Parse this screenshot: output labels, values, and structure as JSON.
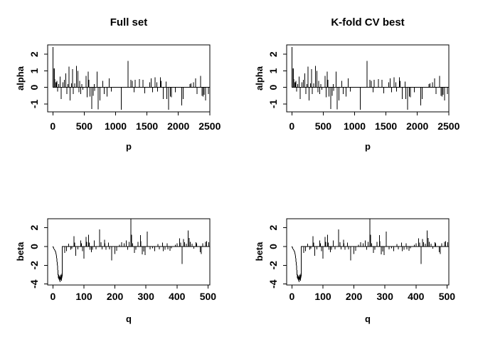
{
  "window": {
    "background": "#ffffff",
    "plot_color": "#000000"
  },
  "chart_data": [
    {
      "type": "line",
      "panel": "full-alpha",
      "layout_row": "top",
      "grid_position": [
        0,
        0
      ],
      "title": "Full set",
      "xlabel": "p",
      "ylabel": "alpha",
      "xlim": [
        -83,
        2502
      ],
      "ylim": [
        -1.48,
        2.57
      ],
      "x_ticks": [
        0,
        500,
        1000,
        1500,
        2000,
        2500
      ],
      "y_ticks": [
        -1,
        0,
        1,
        2
      ],
      "grid": "off",
      "legend": "none",
      "series": "alpha"
    },
    {
      "type": "line",
      "panel": "cv-alpha",
      "layout_row": "top",
      "grid_position": [
        0,
        1
      ],
      "title": "K-fold CV best",
      "xlabel": "p",
      "ylabel": "alpha",
      "xlim": [
        -83,
        2502
      ],
      "ylim": [
        -1.48,
        2.57
      ],
      "x_ticks": [
        0,
        500,
        1000,
        1500,
        2000,
        2500
      ],
      "y_ticks": [
        -1,
        0,
        1,
        2
      ],
      "grid": "off",
      "legend": "none",
      "series": "alpha"
    },
    {
      "type": "line",
      "panel": "full-beta",
      "layout_row": "bottom",
      "grid_position": [
        1,
        0
      ],
      "title": "",
      "xlabel": "q",
      "ylabel": "beta",
      "xlim": [
        -17,
        506
      ],
      "ylim": [
        -4.1,
        2.95
      ],
      "x_ticks": [
        0,
        100,
        200,
        300,
        400,
        500
      ],
      "y_ticks": [
        -4,
        -2,
        0,
        2
      ],
      "grid": "off",
      "legend": "none",
      "series": "beta"
    },
    {
      "type": "line",
      "panel": "cv-beta",
      "layout_row": "bottom",
      "grid_position": [
        1,
        1
      ],
      "title": "",
      "xlabel": "q",
      "ylabel": "beta",
      "xlim": [
        -17,
        506
      ],
      "ylim": [
        -4.1,
        2.95
      ],
      "x_ticks": [
        0,
        100,
        200,
        300,
        400,
        500
      ],
      "y_ticks": [
        -4,
        -2,
        0,
        2
      ],
      "grid": "off",
      "legend": "none",
      "series": "beta"
    }
  ],
  "series": {
    "alpha": {
      "baseline": 0,
      "x_range": [
        0,
        2500
      ],
      "spikes": [
        [
          2,
          2.45
        ],
        [
          10,
          1.15
        ],
        [
          24,
          1.15
        ],
        [
          28,
          0.5
        ],
        [
          45,
          0.3
        ],
        [
          52,
          0.3
        ],
        [
          62,
          0.4
        ],
        [
          77,
          -0.25
        ],
        [
          95,
          0.2
        ],
        [
          115,
          0.65
        ],
        [
          135,
          -0.7
        ],
        [
          158,
          0.3
        ],
        [
          185,
          0.45
        ],
        [
          205,
          0.85
        ],
        [
          223,
          -0.4
        ],
        [
          240,
          0.2
        ],
        [
          258,
          1.25
        ],
        [
          273,
          -0.8
        ],
        [
          295,
          0.25
        ],
        [
          311,
          1.1
        ],
        [
          327,
          -0.4
        ],
        [
          350,
          0.25
        ],
        [
          377,
          1.3
        ],
        [
          398,
          1.0
        ],
        [
          415,
          -0.3
        ],
        [
          428,
          0.4
        ],
        [
          445,
          -0.4
        ],
        [
          460,
          0.2
        ],
        [
          480,
          -0.15
        ],
        [
          527,
          0.7
        ],
        [
          545,
          -0.6
        ],
        [
          563,
          0.95
        ],
        [
          575,
          0.45
        ],
        [
          593,
          -0.55
        ],
        [
          619,
          -1.3
        ],
        [
          640,
          -0.5
        ],
        [
          660,
          0.2
        ],
        [
          668,
          -0.2
        ],
        [
          705,
          0.95
        ],
        [
          720,
          -1.33
        ],
        [
          750,
          -0.8
        ],
        [
          798,
          0.4
        ],
        [
          817,
          -0.4
        ],
        [
          862,
          -0.55
        ],
        [
          899,
          0.55
        ],
        [
          929,
          -0.25
        ],
        [
          1092,
          -1.35
        ],
        [
          1196,
          1.6
        ],
        [
          1242,
          0.45
        ],
        [
          1265,
          0.4
        ],
        [
          1296,
          -0.3
        ],
        [
          1312,
          0.45
        ],
        [
          1381,
          0.5
        ],
        [
          1438,
          0.45
        ],
        [
          1462,
          -0.35
        ],
        [
          1542,
          0.3
        ],
        [
          1565,
          0.55
        ],
        [
          1592,
          -0.3
        ],
        [
          1630,
          0.6
        ],
        [
          1655,
          0.3
        ],
        [
          1668,
          -0.25
        ],
        [
          1712,
          0.6
        ],
        [
          1724,
          0.4
        ],
        [
          1760,
          -0.7
        ],
        [
          1804,
          0.35
        ],
        [
          1815,
          -0.7
        ],
        [
          1845,
          -1.35
        ],
        [
          1870,
          -0.55
        ],
        [
          1890,
          -0.6
        ],
        [
          1952,
          -0.3
        ],
        [
          2055,
          -1.1
        ],
        [
          2075,
          -0.7
        ],
        [
          2185,
          0.2
        ],
        [
          2200,
          0.25
        ],
        [
          2240,
          0.3
        ],
        [
          2278,
          0.55
        ],
        [
          2300,
          -0.4
        ],
        [
          2352,
          0.7
        ],
        [
          2375,
          -0.5
        ],
        [
          2395,
          -0.55
        ],
        [
          2410,
          -0.45
        ],
        [
          2433,
          -0.8
        ],
        [
          2480,
          -0.4
        ]
      ]
    },
    "beta": {
      "baseline": 0,
      "x_range": [
        0,
        505
      ],
      "lead_path": [
        [
          4,
          -0.3
        ],
        [
          8,
          -0.5
        ],
        [
          11,
          -0.9
        ],
        [
          13,
          -1.5
        ],
        [
          15,
          -2.2
        ],
        [
          16,
          -2.7
        ],
        [
          17,
          -3.1
        ],
        [
          18,
          -3.4
        ],
        [
          19,
          -3.0
        ],
        [
          20,
          -3.55
        ],
        [
          21,
          -3.2
        ],
        [
          22,
          -3.65
        ],
        [
          23,
          -3.7
        ],
        [
          24,
          -3.1
        ],
        [
          25,
          -3.5
        ],
        [
          26,
          -3.0
        ],
        [
          27,
          -3.55
        ],
        [
          28,
          -3.6
        ],
        [
          29,
          -2.9
        ],
        [
          30,
          -3.2
        ],
        [
          30.5,
          0
        ]
      ],
      "spikes": [
        [
          38,
          -0.7
        ],
        [
          44,
          -0.5
        ],
        [
          51,
          0.3
        ],
        [
          57,
          -0.35
        ],
        [
          61,
          -0.25
        ],
        [
          68,
          1.1
        ],
        [
          70,
          0.4
        ],
        [
          74,
          -1.0
        ],
        [
          80,
          -0.3
        ],
        [
          90,
          0.65
        ],
        [
          92,
          0.35
        ],
        [
          95,
          -0.5
        ],
        [
          100,
          -1.3
        ],
        [
          107,
          1.0
        ],
        [
          109,
          0.5
        ],
        [
          115,
          1.25
        ],
        [
          117,
          0.4
        ],
        [
          120,
          -0.35
        ],
        [
          124,
          -0.6
        ],
        [
          127,
          -0.35
        ],
        [
          133,
          0.65
        ],
        [
          139,
          -0.3
        ],
        [
          150,
          1.8
        ],
        [
          155,
          0.45
        ],
        [
          158,
          -0.3
        ],
        [
          166,
          0.7
        ],
        [
          168,
          0.35
        ],
        [
          171,
          -0.35
        ],
        [
          179,
          0.4
        ],
        [
          182,
          -0.3
        ],
        [
          189,
          -1.5
        ],
        [
          200,
          -0.8
        ],
        [
          206,
          -0.45
        ],
        [
          215,
          0.2
        ],
        [
          222,
          0.45
        ],
        [
          230,
          0.35
        ],
        [
          236,
          0.65
        ],
        [
          241,
          -0.35
        ],
        [
          246,
          0.5
        ],
        [
          251,
          2.95
        ],
        [
          254,
          1.25
        ],
        [
          257,
          0.35
        ],
        [
          263,
          -0.68
        ],
        [
          267,
          -0.35
        ],
        [
          274,
          0.5
        ],
        [
          282,
          1.2
        ],
        [
          284,
          0.55
        ],
        [
          288,
          -0.85
        ],
        [
          293,
          -0.55
        ],
        [
          297,
          -0.9
        ],
        [
          304,
          1.6
        ],
        [
          313,
          -0.3
        ],
        [
          321,
          -0.2
        ],
        [
          328,
          -0.5
        ],
        [
          339,
          0.25
        ],
        [
          343,
          -0.3
        ],
        [
          353,
          0.4
        ],
        [
          356,
          -0.5
        ],
        [
          362,
          -0.35
        ],
        [
          368,
          0.33
        ],
        [
          371,
          -0.3
        ],
        [
          377,
          -0.45
        ],
        [
          382,
          -0.2
        ],
        [
          395,
          0.2
        ],
        [
          401,
          0.33
        ],
        [
          409,
          0.85
        ],
        [
          412,
          0.4
        ],
        [
          416,
          -1.85
        ],
        [
          421,
          0.8
        ],
        [
          424,
          0.45
        ],
        [
          430,
          0.3
        ],
        [
          436,
          1.7
        ],
        [
          440,
          0.9
        ],
        [
          443,
          0.5
        ],
        [
          449,
          0.3
        ],
        [
          454,
          -0.25
        ],
        [
          461,
          0.45
        ],
        [
          464,
          0.35
        ],
        [
          475,
          -0.6
        ],
        [
          478,
          -0.8
        ],
        [
          483,
          0.35
        ],
        [
          492,
          0.5
        ],
        [
          496,
          0.55
        ],
        [
          502,
          0.45
        ]
      ]
    }
  }
}
